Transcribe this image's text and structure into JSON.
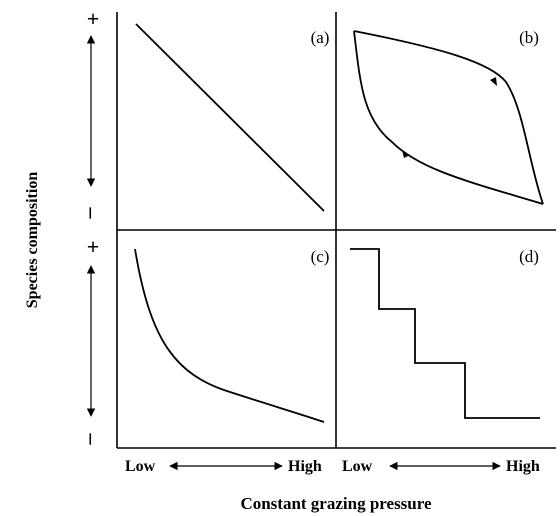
{
  "y_axis": {
    "label": "Species composition",
    "top_sign": "+",
    "bottom_sign": "–"
  },
  "x_axis": {
    "label": "Constant grazing pressure",
    "low": "Low",
    "high": "High"
  },
  "panels": [
    {
      "id": "a",
      "label": "(a)",
      "shape": "linear decline"
    },
    {
      "id": "b",
      "label": "(b)",
      "shape": "hysteresis loop"
    },
    {
      "id": "c",
      "label": "(c)",
      "shape": "exponential decay"
    },
    {
      "id": "d",
      "label": "(d)",
      "shape": "stepwise decline"
    }
  ],
  "colors": {
    "ink": "#000000",
    "background": "#ffffff"
  }
}
